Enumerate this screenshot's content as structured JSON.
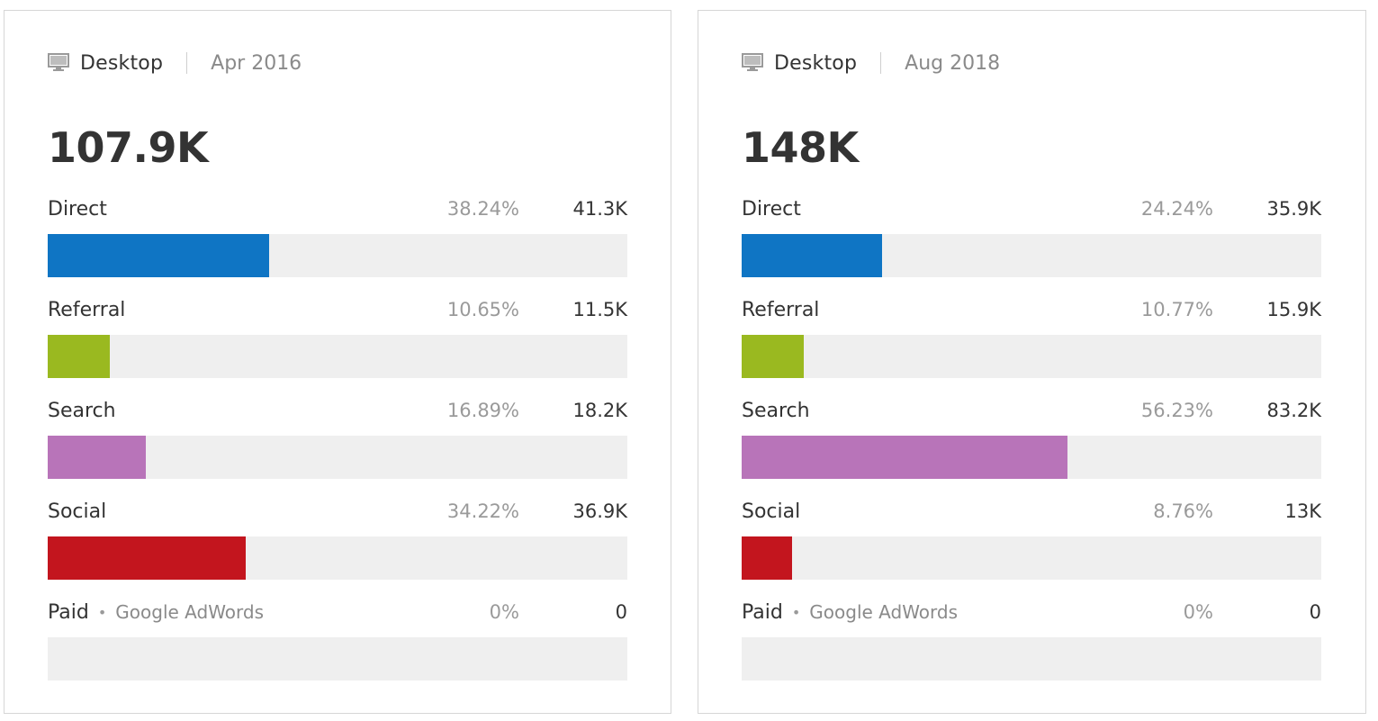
{
  "chart_data": [
    {
      "type": "bar",
      "device": "Desktop",
      "period": "Apr 2016",
      "total": "107.9K",
      "categories": [
        "Direct",
        "Referral",
        "Search",
        "Social",
        "Paid"
      ],
      "rows": [
        {
          "label": "Direct",
          "sub": "",
          "percent": "38.24%",
          "percent_value": 38.24,
          "value": "41.3K",
          "color": "#0f75c4"
        },
        {
          "label": "Referral",
          "sub": "",
          "percent": "10.65%",
          "percent_value": 10.65,
          "value": "11.5K",
          "color": "#9ab920"
        },
        {
          "label": "Search",
          "sub": "",
          "percent": "16.89%",
          "percent_value": 16.89,
          "value": "18.2K",
          "color": "#b874b9"
        },
        {
          "label": "Social",
          "sub": "",
          "percent": "34.22%",
          "percent_value": 34.22,
          "value": "36.9K",
          "color": "#c3151e"
        },
        {
          "label": "Paid",
          "sub": "Google AdWords",
          "percent": "0%",
          "percent_value": 0,
          "value": "0",
          "color": "#0f75c4"
        }
      ],
      "xlim": [
        0,
        100
      ]
    },
    {
      "type": "bar",
      "device": "Desktop",
      "period": "Aug 2018",
      "total": "148K",
      "categories": [
        "Direct",
        "Referral",
        "Search",
        "Social",
        "Paid"
      ],
      "rows": [
        {
          "label": "Direct",
          "sub": "",
          "percent": "24.24%",
          "percent_value": 24.24,
          "value": "35.9K",
          "color": "#0f75c4"
        },
        {
          "label": "Referral",
          "sub": "",
          "percent": "10.77%",
          "percent_value": 10.77,
          "value": "15.9K",
          "color": "#9ab920"
        },
        {
          "label": "Search",
          "sub": "",
          "percent": "56.23%",
          "percent_value": 56.23,
          "value": "83.2K",
          "color": "#b874b9"
        },
        {
          "label": "Social",
          "sub": "",
          "percent": "8.76%",
          "percent_value": 8.76,
          "value": "13K",
          "color": "#c3151e"
        },
        {
          "label": "Paid",
          "sub": "Google AdWords",
          "percent": "0%",
          "percent_value": 0,
          "value": "0",
          "color": "#0f75c4"
        }
      ],
      "xlim": [
        0,
        100
      ]
    }
  ],
  "ui": {
    "device_icon": "desktop-monitor-icon",
    "track_color": "#efefef"
  }
}
